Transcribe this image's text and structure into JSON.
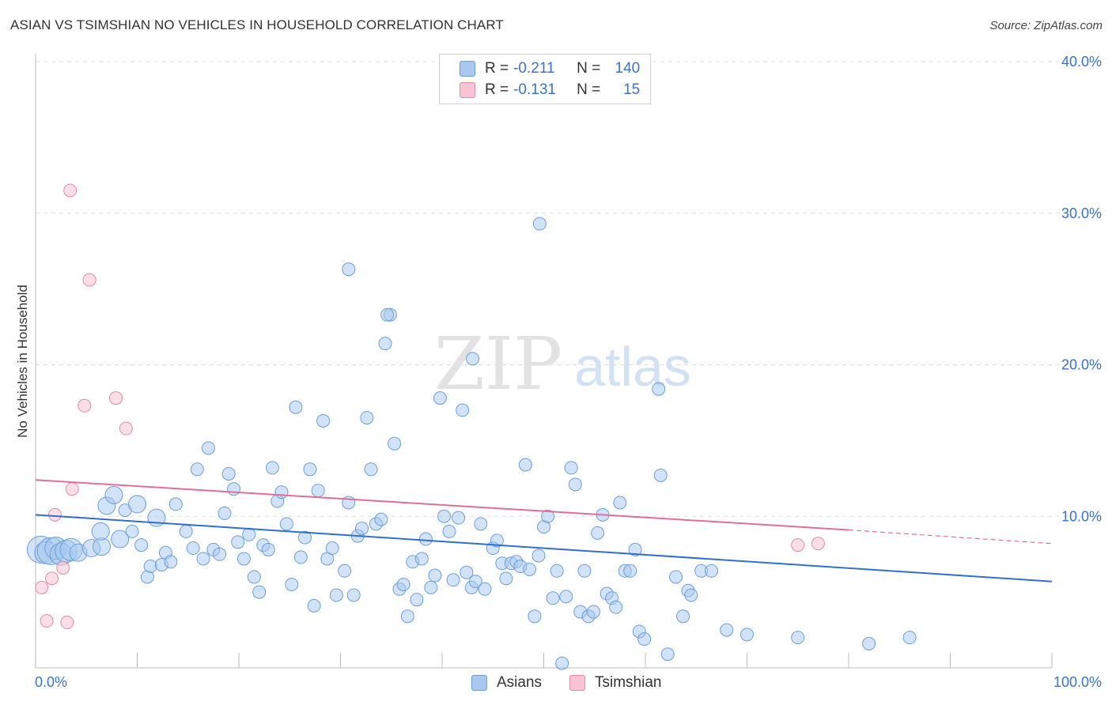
{
  "title": "ASIAN VS TSIMSHIAN NO VEHICLES IN HOUSEHOLD CORRELATION CHART",
  "source": "Source: ZipAtlas.com",
  "watermark": {
    "zip": "ZIP",
    "atlas": "atlas"
  },
  "legend_top": {
    "rows": [
      {
        "r_label": "R =",
        "r_value": "-0.211",
        "n_label": "N =",
        "n_value": "140",
        "color": "#a8c8f0",
        "border": "#6a9fdc"
      },
      {
        "r_label": "R =",
        "r_value": "-0.131",
        "n_label": "N =",
        "n_value": "15",
        "color": "#f8c4d4",
        "border": "#e58aa6"
      }
    ]
  },
  "legend_bottom": [
    {
      "label": "Asians",
      "color": "#a8c8f0",
      "border": "#6a9fdc"
    },
    {
      "label": "Tsimshian",
      "color": "#f8c4d4",
      "border": "#e58aa6"
    }
  ],
  "chart_data": {
    "type": "scatter",
    "title": "ASIAN VS TSIMSHIAN NO VEHICLES IN HOUSEHOLD CORRELATION CHART",
    "xlabel": "",
    "ylabel": "No Vehicles in Household",
    "xlim": [
      0,
      100
    ],
    "ylim": [
      0,
      40
    ],
    "x_tick_labels": [
      "0.0%",
      "100.0%"
    ],
    "y_ticks": [
      10,
      20,
      30,
      40
    ],
    "y_tick_labels": [
      "10.0%",
      "20.0%",
      "30.0%",
      "40.0%"
    ],
    "grid": "horizontal dashed",
    "legend_position": "top-center",
    "colors": {
      "asians": "#3a74c9",
      "tsimshian": "#e06f97"
    },
    "series": [
      {
        "name": "Asians",
        "color": "#3a74c9",
        "trend": {
          "x": [
            0,
            100
          ],
          "y": [
            10.1,
            5.7
          ]
        },
        "points": [
          [
            0.5,
            7.8,
            4
          ],
          [
            1.0,
            7.6,
            3
          ],
          [
            1.5,
            7.7,
            4
          ],
          [
            2.0,
            7.9,
            3
          ],
          [
            2.5,
            7.5,
            3
          ],
          [
            3.0,
            7.7,
            3
          ],
          [
            3.5,
            7.8,
            3
          ],
          [
            4.2,
            7.6,
            2
          ],
          [
            5.5,
            7.9,
            2
          ],
          [
            6.5,
            8.0,
            2
          ],
          [
            6.4,
            9.0,
            2
          ],
          [
            7.0,
            10.7,
            2
          ],
          [
            7.7,
            11.4,
            2
          ],
          [
            8.3,
            8.5,
            2
          ],
          [
            8.8,
            10.4,
            1
          ],
          [
            9.5,
            9.0,
            1
          ],
          [
            10.0,
            10.8,
            2
          ],
          [
            10.4,
            8.1,
            1
          ],
          [
            11.0,
            6.0,
            1
          ],
          [
            11.3,
            6.7,
            1
          ],
          [
            11.9,
            9.9,
            2
          ],
          [
            12.4,
            6.8,
            1
          ],
          [
            12.8,
            7.6,
            1
          ],
          [
            13.3,
            7.0,
            1
          ],
          [
            13.8,
            10.8,
            1
          ],
          [
            14.8,
            9.0,
            1
          ],
          [
            15.5,
            7.9,
            1
          ],
          [
            15.9,
            13.1,
            1
          ],
          [
            16.5,
            7.2,
            1
          ],
          [
            17.0,
            14.5,
            1
          ],
          [
            17.5,
            7.8,
            1
          ],
          [
            18.1,
            7.5,
            1
          ],
          [
            18.6,
            10.2,
            1
          ],
          [
            19.0,
            12.8,
            1
          ],
          [
            19.5,
            11.8,
            1
          ],
          [
            19.9,
            8.3,
            1
          ],
          [
            20.5,
            7.2,
            1
          ],
          [
            21.0,
            8.8,
            1
          ],
          [
            21.5,
            6.0,
            1
          ],
          [
            22.0,
            5.0,
            1
          ],
          [
            22.4,
            8.1,
            1
          ],
          [
            22.9,
            7.8,
            1
          ],
          [
            23.3,
            13.2,
            1
          ],
          [
            23.8,
            11.0,
            1
          ],
          [
            24.2,
            11.6,
            1
          ],
          [
            24.7,
            9.5,
            1
          ],
          [
            25.2,
            5.5,
            1
          ],
          [
            25.6,
            17.2,
            1
          ],
          [
            26.1,
            7.3,
            1
          ],
          [
            26.5,
            8.6,
            1
          ],
          [
            27.0,
            13.1,
            1
          ],
          [
            27.4,
            4.1,
            1
          ],
          [
            27.8,
            11.7,
            1
          ],
          [
            28.3,
            16.3,
            1
          ],
          [
            28.7,
            7.2,
            1
          ],
          [
            29.2,
            7.9,
            1
          ],
          [
            29.6,
            4.8,
            1
          ],
          [
            30.4,
            6.4,
            1
          ],
          [
            30.8,
            10.9,
            1
          ],
          [
            31.3,
            4.8,
            1
          ],
          [
            31.7,
            8.7,
            1
          ],
          [
            32.1,
            9.2,
            1
          ],
          [
            32.6,
            16.5,
            1
          ],
          [
            33.0,
            13.1,
            1
          ],
          [
            33.5,
            9.5,
            1
          ],
          [
            34.0,
            9.8,
            1
          ],
          [
            34.4,
            21.4,
            1
          ],
          [
            34.9,
            23.3,
            1
          ],
          [
            35.3,
            14.8,
            1
          ],
          [
            35.8,
            5.2,
            1
          ],
          [
            36.2,
            5.5,
            1
          ],
          [
            36.6,
            3.4,
            1
          ],
          [
            37.1,
            7.0,
            1
          ],
          [
            37.5,
            4.5,
            1
          ],
          [
            38.0,
            7.2,
            1
          ],
          [
            38.4,
            8.5,
            1
          ],
          [
            38.9,
            5.3,
            1
          ],
          [
            39.3,
            6.1,
            1
          ],
          [
            39.8,
            17.8,
            1
          ],
          [
            40.2,
            10.0,
            1
          ],
          [
            40.7,
            9.0,
            1
          ],
          [
            41.1,
            5.8,
            1
          ],
          [
            41.6,
            9.9,
            1
          ],
          [
            42.0,
            17.0,
            1
          ],
          [
            42.4,
            6.3,
            1
          ],
          [
            42.9,
            5.3,
            1
          ],
          [
            43.3,
            5.7,
            1
          ],
          [
            43.8,
            9.5,
            1
          ],
          [
            44.2,
            5.2,
            1
          ],
          [
            45.0,
            7.9,
            1
          ],
          [
            45.4,
            8.4,
            1
          ],
          [
            45.9,
            6.9,
            1
          ],
          [
            46.3,
            5.9,
            1
          ],
          [
            46.8,
            6.9,
            1
          ],
          [
            47.3,
            7.0,
            1
          ],
          [
            47.7,
            6.7,
            1
          ],
          [
            48.2,
            13.4,
            1
          ],
          [
            48.6,
            6.5,
            1
          ],
          [
            49.1,
            3.4,
            1
          ],
          [
            49.5,
            7.4,
            1
          ],
          [
            50.0,
            9.3,
            1
          ],
          [
            50.4,
            10.0,
            1
          ],
          [
            50.9,
            4.6,
            1
          ],
          [
            51.3,
            6.4,
            1
          ],
          [
            51.8,
            0.3,
            1
          ],
          [
            52.2,
            4.7,
            1
          ],
          [
            52.7,
            13.2,
            1
          ],
          [
            53.1,
            12.1,
            1
          ],
          [
            53.6,
            3.7,
            1
          ],
          [
            54.0,
            6.4,
            1
          ],
          [
            54.4,
            3.4,
            1
          ],
          [
            54.9,
            3.7,
            1
          ],
          [
            55.3,
            8.9,
            1
          ],
          [
            55.8,
            10.1,
            1
          ],
          [
            56.2,
            4.9,
            1
          ],
          [
            56.7,
            4.6,
            1
          ],
          [
            57.1,
            4.0,
            1
          ],
          [
            57.5,
            10.9,
            1
          ],
          [
            58.0,
            6.4,
            1
          ],
          [
            58.5,
            6.4,
            1
          ],
          [
            59.0,
            7.8,
            1
          ],
          [
            59.4,
            2.4,
            1
          ],
          [
            59.9,
            1.9,
            1
          ],
          [
            61.3,
            18.4,
            1
          ],
          [
            61.5,
            12.7,
            1
          ],
          [
            62.2,
            0.9,
            1
          ],
          [
            63.0,
            6.0,
            1
          ],
          [
            63.7,
            3.4,
            1
          ],
          [
            64.2,
            5.1,
            1
          ],
          [
            64.5,
            4.8,
            1
          ],
          [
            65.5,
            6.4,
            1
          ],
          [
            66.5,
            6.4,
            1
          ],
          [
            68.0,
            2.5,
            1
          ],
          [
            70.0,
            2.2,
            1
          ],
          [
            75.0,
            2.0,
            1
          ],
          [
            86.0,
            2.0,
            1
          ],
          [
            82.0,
            1.6,
            1
          ],
          [
            49.6,
            29.3,
            1
          ],
          [
            30.8,
            26.3,
            1
          ],
          [
            34.6,
            23.3,
            1
          ],
          [
            43.0,
            20.4,
            1
          ]
        ]
      },
      {
        "name": "Tsimshian",
        "color": "#e06f97",
        "trend": {
          "x": [
            0,
            80
          ],
          "y": [
            12.4,
            9.1
          ]
        },
        "trend_extension": {
          "x": [
            80,
            100
          ],
          "y": [
            9.1,
            8.2
          ]
        },
        "points": [
          [
            0.6,
            5.3
          ],
          [
            1.1,
            3.1
          ],
          [
            1.6,
            5.9
          ],
          [
            1.9,
            10.1
          ],
          [
            2.7,
            6.6
          ],
          [
            3.1,
            3.0
          ],
          [
            3.4,
            31.5
          ],
          [
            3.6,
            11.8
          ],
          [
            4.8,
            17.3
          ],
          [
            5.3,
            25.6
          ],
          [
            7.9,
            17.8
          ],
          [
            8.9,
            15.8
          ],
          [
            75.0,
            8.1
          ],
          [
            77.0,
            8.2
          ]
        ]
      }
    ]
  }
}
